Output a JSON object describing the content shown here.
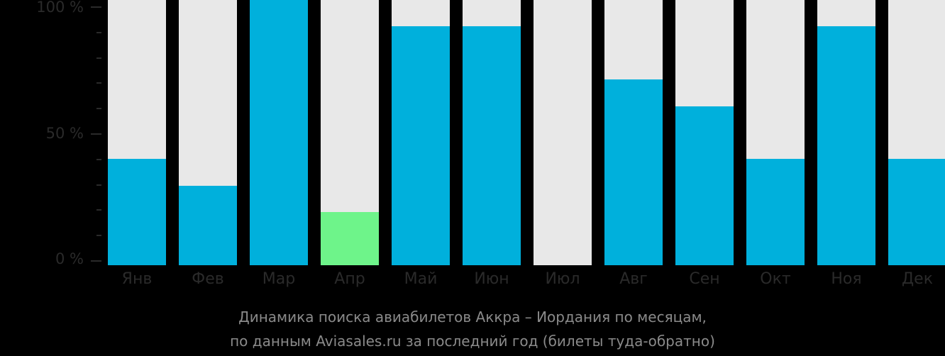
{
  "chart_data": {
    "type": "bar",
    "title": "Динамика поиска авиабилетов Аккра – Иордания по месяцам, по данным Aviasales.ru за последний год (билеты туда-обратно)",
    "xlabel": "",
    "ylabel": "",
    "ylim": [
      0,
      100
    ],
    "yticks": [
      "0 %",
      "50 %",
      "100 %"
    ],
    "grid": false,
    "legend": null,
    "categories": [
      "Янв",
      "Фев",
      "Мар",
      "Апр",
      "Май",
      "Июн",
      "Июл",
      "Авг",
      "Сен",
      "Окт",
      "Ноя",
      "Дек"
    ],
    "values": [
      40,
      30,
      100,
      20,
      90,
      90,
      0,
      70,
      60,
      40,
      90,
      40
    ],
    "highlight_index": 3,
    "colors": {
      "bar": "#00b0dc",
      "highlight": "#6ef48a",
      "track": "#e8e8e8",
      "background": "#000000",
      "axis_text": "#2a2a2a",
      "caption_text": "#8a8a8a"
    }
  },
  "yaxis": {
    "labels": [
      "100 %",
      "50 %",
      "0 %"
    ]
  },
  "caption": {
    "line1": "Динамика поиска авиабилетов Аккра – Иордания по месяцам,",
    "line2": "по данным Aviasales.ru за последний год (билеты туда-обратно)"
  }
}
